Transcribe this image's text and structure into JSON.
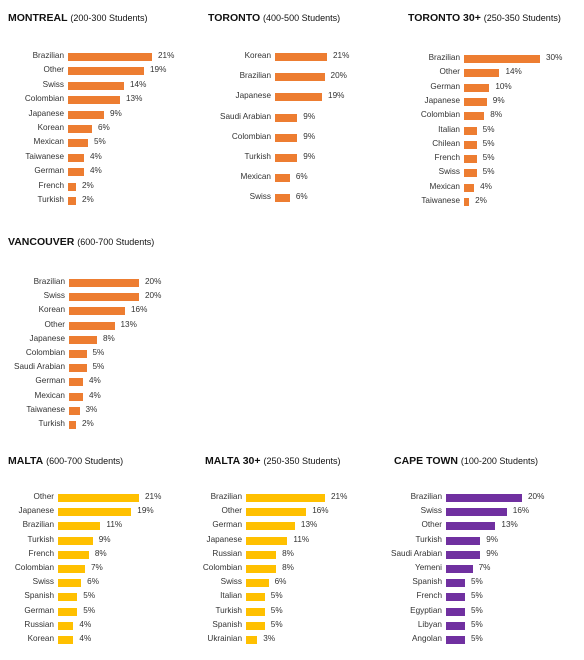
{
  "chart_data": [
    {
      "type": "bar",
      "title": "MONTREAL",
      "subtitle": "(200-300 Students)",
      "color": "#ed7d31",
      "categories": [
        "Brazilian",
        "Other",
        "Swiss",
        "Colombian",
        "Japanese",
        "Korean",
        "Mexican",
        "Taiwanese",
        "German",
        "French",
        "Turkish"
      ],
      "values": [
        21,
        19,
        14,
        13,
        9,
        6,
        5,
        4,
        4,
        2,
        2
      ],
      "value_labels": [
        "21%",
        "19%",
        "14%",
        "13%",
        "9%",
        "6%",
        "5%",
        "4%",
        "4%",
        "2%",
        "2%"
      ]
    },
    {
      "type": "bar",
      "title": "TORONTO",
      "subtitle": "(400-500 Students)",
      "color": "#ed7d31",
      "categories": [
        "Korean",
        "Brazilian",
        "Japanese",
        "Saudi Arabian",
        "Colombian",
        "Turkish",
        "Mexican",
        "Swiss"
      ],
      "values": [
        21,
        20,
        19,
        9,
        9,
        9,
        6,
        6
      ],
      "value_labels": [
        "21%",
        "20%",
        "19%",
        "9%",
        "9%",
        "9%",
        "6%",
        "6%"
      ]
    },
    {
      "type": "bar",
      "title": "TORONTO 30+",
      "subtitle": "(250-350 Students)",
      "color": "#ed7d31",
      "categories": [
        "Brazilian",
        "Other",
        "German",
        "Japanese",
        "Colombian",
        "Italian",
        "Chilean",
        "French",
        "Swiss",
        "Mexican",
        "Taiwanese"
      ],
      "values": [
        30,
        14,
        10,
        9,
        8,
        5,
        5,
        5,
        5,
        4,
        2
      ],
      "value_labels": [
        "30%",
        "14%",
        "10%",
        "9%",
        "8%",
        "5%",
        "5%",
        "5%",
        "5%",
        "4%",
        "2%"
      ]
    },
    {
      "type": "bar",
      "title": "VANCOUVER",
      "subtitle": "(600-700 Students)",
      "color": "#ed7d31",
      "categories": [
        "Brazilian",
        "Swiss",
        "Korean",
        "Other",
        "Japanese",
        "Colombian",
        "Saudi Arabian",
        "German",
        "Mexican",
        "Taiwanese",
        "Turkish"
      ],
      "values": [
        20,
        20,
        16,
        13,
        8,
        5,
        5,
        4,
        4,
        3,
        2
      ],
      "value_labels": [
        "20%",
        "20%",
        "16%",
        "13%",
        "8%",
        "5%",
        "5%",
        "4%",
        "4%",
        "3%",
        "2%"
      ]
    },
    {
      "type": "bar",
      "title": "MALTA",
      "subtitle": "(600-700 Students)",
      "color": "#ffc000",
      "categories": [
        "Other",
        "Japanese",
        "Brazilian",
        "Turkish",
        "French",
        "Colombian",
        "Swiss",
        "Spanish",
        "German",
        "Russian",
        "Korean"
      ],
      "values": [
        21,
        19,
        11,
        9,
        8,
        7,
        6,
        5,
        5,
        4,
        4
      ],
      "value_labels": [
        "21%",
        "19%",
        "11%",
        "9%",
        "8%",
        "7%",
        "6%",
        "5%",
        "5%",
        "4%",
        "4%"
      ]
    },
    {
      "type": "bar",
      "title": "MALTA 30+",
      "subtitle": "(250-350 Students)",
      "color": "#ffc000",
      "categories": [
        "Brazilian",
        "Other",
        "German",
        "Japanese",
        "Russian",
        "Colombian",
        "Swiss",
        "Italian",
        "Turkish",
        "Spanish",
        "Ukrainian"
      ],
      "values": [
        21,
        16,
        13,
        11,
        8,
        8,
        6,
        5,
        5,
        5,
        3
      ],
      "value_labels": [
        "21%",
        "16%",
        "13%",
        "11%",
        "8%",
        "8%",
        "6%",
        "5%",
        "5%",
        "5%",
        "3%"
      ]
    },
    {
      "type": "bar",
      "title": "CAPE TOWN",
      "subtitle": "(100-200 Students)",
      "color": "#7030a0",
      "categories": [
        "Brazilian",
        "Swiss",
        "Other",
        "Turkish",
        "Saudi Arabian",
        "Yemeni",
        "Spanish",
        "French",
        "Egyptian",
        "Libyan",
        "Angolan"
      ],
      "values": [
        20,
        16,
        13,
        9,
        9,
        7,
        5,
        5,
        5,
        5,
        5
      ],
      "value_labels": [
        "20%",
        "16%",
        "13%",
        "9%",
        "9%",
        "7%",
        "5%",
        "5%",
        "5%",
        "5%",
        "5%"
      ]
    }
  ]
}
